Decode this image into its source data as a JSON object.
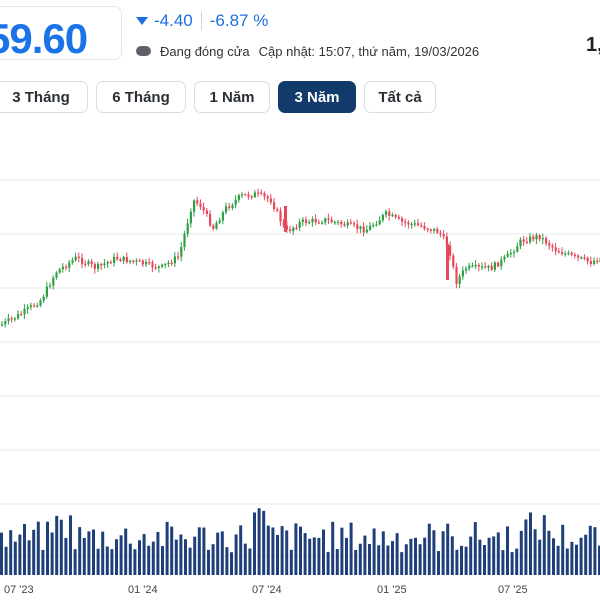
{
  "quote": {
    "price": "59.60",
    "change": "-4.40",
    "change_pct": "-6.87 %",
    "status": "Đang đóng cửa",
    "updated": "Cập nhật: 15:07, thứ năm, 19/03/2026",
    "corner_text": "1,"
  },
  "colors": {
    "up": "#2ea043",
    "down": "#e5485a",
    "accent": "#1a73e8",
    "active_tab": "#123b6b"
  },
  "tabs": [
    {
      "label": "3 Tháng",
      "active": false
    },
    {
      "label": "6 Tháng",
      "active": false
    },
    {
      "label": "1 Năm",
      "active": false
    },
    {
      "label": "3 Năm",
      "active": true
    },
    {
      "label": "Tất cả",
      "active": false
    }
  ],
  "chart_data": {
    "type": "candlestick",
    "x_ticks": [
      "07 '23",
      "01 '24",
      "07 '24",
      "01 '25",
      "07 '25"
    ],
    "close_trend": [
      [
        0,
        325
      ],
      [
        20,
        314
      ],
      [
        40,
        300
      ],
      [
        55,
        272
      ],
      [
        75,
        258
      ],
      [
        95,
        268
      ],
      [
        115,
        258
      ],
      [
        135,
        262
      ],
      [
        160,
        268
      ],
      [
        178,
        256
      ],
      [
        185,
        228
      ],
      [
        192,
        200
      ],
      [
        200,
        206
      ],
      [
        212,
        228
      ],
      [
        225,
        208
      ],
      [
        240,
        196
      ],
      [
        255,
        194
      ],
      [
        270,
        200
      ],
      [
        285,
        232
      ],
      [
        300,
        222
      ],
      [
        325,
        220
      ],
      [
        345,
        225
      ],
      [
        365,
        230
      ],
      [
        385,
        214
      ],
      [
        400,
        222
      ],
      [
        420,
        226
      ],
      [
        438,
        232
      ],
      [
        448,
        248
      ],
      [
        455,
        282
      ],
      [
        465,
        268
      ],
      [
        490,
        268
      ],
      [
        505,
        258
      ],
      [
        520,
        241
      ],
      [
        538,
        236
      ],
      [
        555,
        250
      ],
      [
        575,
        258
      ],
      [
        590,
        262
      ],
      [
        600,
        258
      ]
    ]
  }
}
